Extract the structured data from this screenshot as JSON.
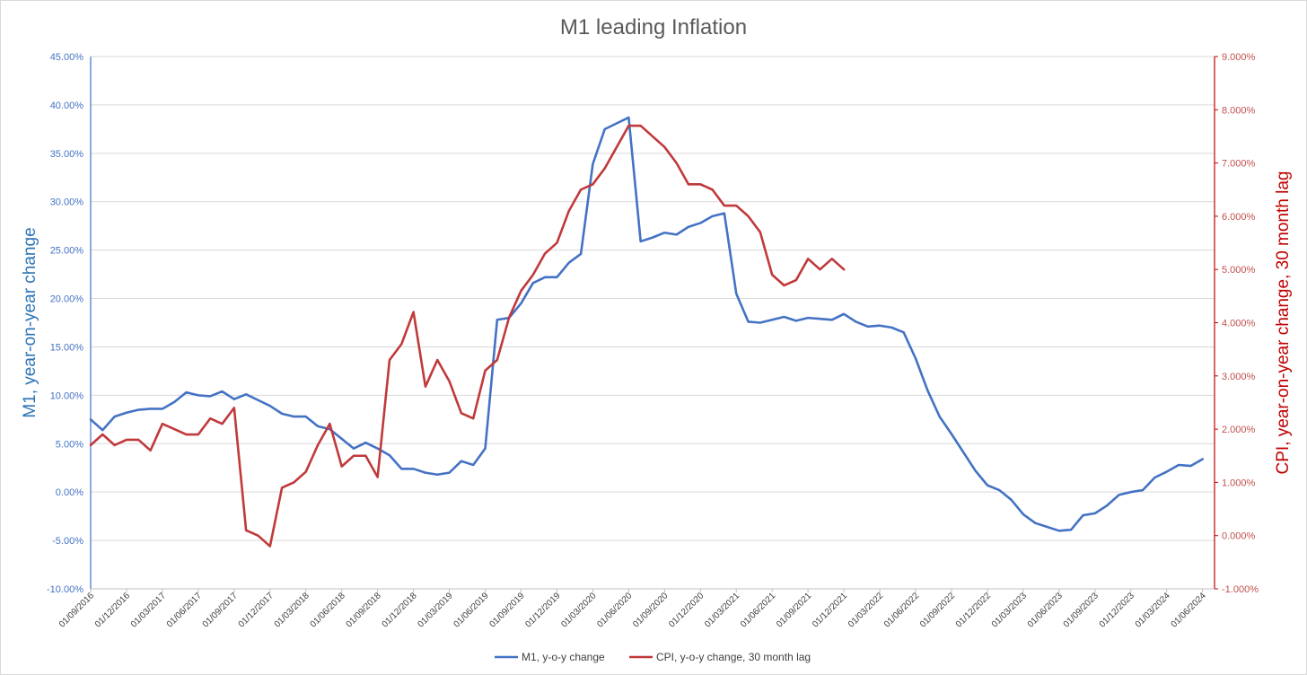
{
  "chart_data": {
    "type": "line",
    "title": "M1 leading Inflation",
    "ylabel_left": "M1, year-on-year change",
    "ylabel_right": "CPI, year-on-year change, 30 month lag",
    "ylim_left": [
      -0.1,
      0.45
    ],
    "ylim_right": [
      -0.01,
      0.09
    ],
    "yticks_left": [
      "-10.00%",
      "-5.00%",
      "0.00%",
      "5.00%",
      "10.00%",
      "15.00%",
      "20.00%",
      "25.00%",
      "30.00%",
      "35.00%",
      "40.00%",
      "45.00%"
    ],
    "yticks_right": [
      "-1.000%",
      "0.000%",
      "1.000%",
      "2.000%",
      "3.000%",
      "4.000%",
      "5.000%",
      "6.000%",
      "7.000%",
      "8.000%",
      "9.000%"
    ],
    "xtick_labels": [
      "01/09/2016",
      "01/12/2016",
      "01/03/2017",
      "01/06/2017",
      "01/09/2017",
      "01/12/2017",
      "01/03/2018",
      "01/06/2018",
      "01/09/2018",
      "01/12/2018",
      "01/03/2019",
      "01/06/2019",
      "01/09/2019",
      "01/12/2019",
      "01/03/2020",
      "01/06/2020",
      "01/09/2020",
      "01/12/2020",
      "01/03/2021",
      "01/06/2021",
      "01/09/2021",
      "01/12/2021",
      "01/03/2022",
      "01/06/2022",
      "01/09/2022",
      "01/12/2022",
      "01/03/2023",
      "01/06/2023",
      "01/09/2023",
      "01/12/2023",
      "01/03/2024",
      "01/06/2024"
    ],
    "x_start": "2016-09",
    "x_end": "2024-07",
    "grid": true,
    "legend_position": "bottom",
    "series": [
      {
        "name": "M1, y-o-y change",
        "axis": "left",
        "color": "#4472c4",
        "values": [
          7.5,
          6.4,
          7.8,
          8.2,
          8.5,
          8.6,
          8.6,
          9.3,
          10.3,
          10.0,
          9.9,
          10.4,
          9.6,
          10.1,
          9.5,
          8.9,
          8.1,
          7.8,
          7.8,
          6.8,
          6.5,
          5.5,
          4.5,
          5.1,
          4.5,
          3.8,
          2.4,
          2.4,
          2.0,
          1.8,
          2.0,
          3.2,
          2.8,
          4.5,
          17.8,
          18.0,
          19.5,
          21.6,
          22.2,
          22.2,
          23.7,
          24.6,
          33.9,
          37.5,
          38.1,
          38.7,
          25.9,
          26.3,
          26.8,
          26.6,
          27.4,
          27.8,
          28.5,
          28.8,
          20.5,
          17.6,
          17.5,
          17.8,
          18.1,
          17.7,
          18.0,
          17.9,
          17.8,
          18.4,
          17.6,
          17.1,
          17.2,
          17.0,
          16.5,
          13.8,
          10.5,
          7.8,
          6.0,
          4.1,
          2.2,
          0.7,
          0.2,
          -0.8,
          -2.3,
          -3.2,
          -3.6,
          -4.0,
          -3.9,
          -2.4,
          -2.2,
          -1.4,
          -0.3,
          0.0,
          0.2,
          1.5,
          2.1,
          2.8,
          2.7,
          3.4
        ],
        "unit": "%"
      },
      {
        "name": "CPI, y-o-y change, 30 month lag",
        "axis": "right",
        "color": "#c0393b",
        "values": [
          1.7,
          1.9,
          1.7,
          1.8,
          1.8,
          1.6,
          2.1,
          2.0,
          1.9,
          1.9,
          2.2,
          2.1,
          2.4,
          0.1,
          0.0,
          -0.2,
          0.9,
          1.0,
          1.2,
          1.7,
          2.1,
          1.3,
          1.5,
          1.5,
          1.1,
          3.3,
          3.6,
          4.2,
          2.8,
          3.3,
          2.9,
          2.3,
          2.2,
          3.1,
          3.3,
          4.1,
          4.6,
          4.9,
          5.3,
          5.5,
          6.1,
          6.5,
          6.6,
          6.9,
          7.3,
          7.7,
          7.7,
          7.5,
          7.3,
          7.0,
          6.6,
          6.6,
          6.5,
          6.2,
          6.2,
          6.0,
          5.7,
          4.9,
          4.7,
          4.8,
          5.2,
          5.0,
          5.2,
          5.0
        ],
        "unit": "%"
      }
    ]
  }
}
